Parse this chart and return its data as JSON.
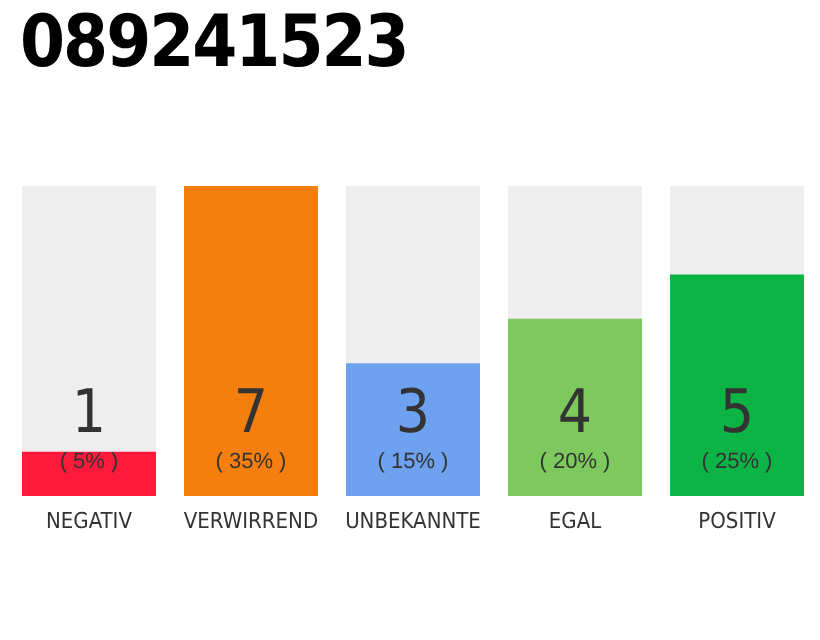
{
  "chart_data": {
    "type": "bar",
    "title": "089241523",
    "categories": [
      "NEGATIV",
      "VERWIRREND",
      "UNBEKANNTE",
      "EGAL",
      "POSITIV"
    ],
    "values": [
      1,
      7,
      3,
      4,
      5
    ],
    "colors": [
      "#ff1a3c",
      "#f47f0f",
      "#6ea1ef",
      "#7dc95e",
      "#0cb446"
    ],
    "data_labels": true,
    "annotations": [
      "( 5% )",
      "( 35% )",
      "( 15% )",
      "( 20% )",
      "( 25% )"
    ],
    "grid": false,
    "legend": false
  }
}
